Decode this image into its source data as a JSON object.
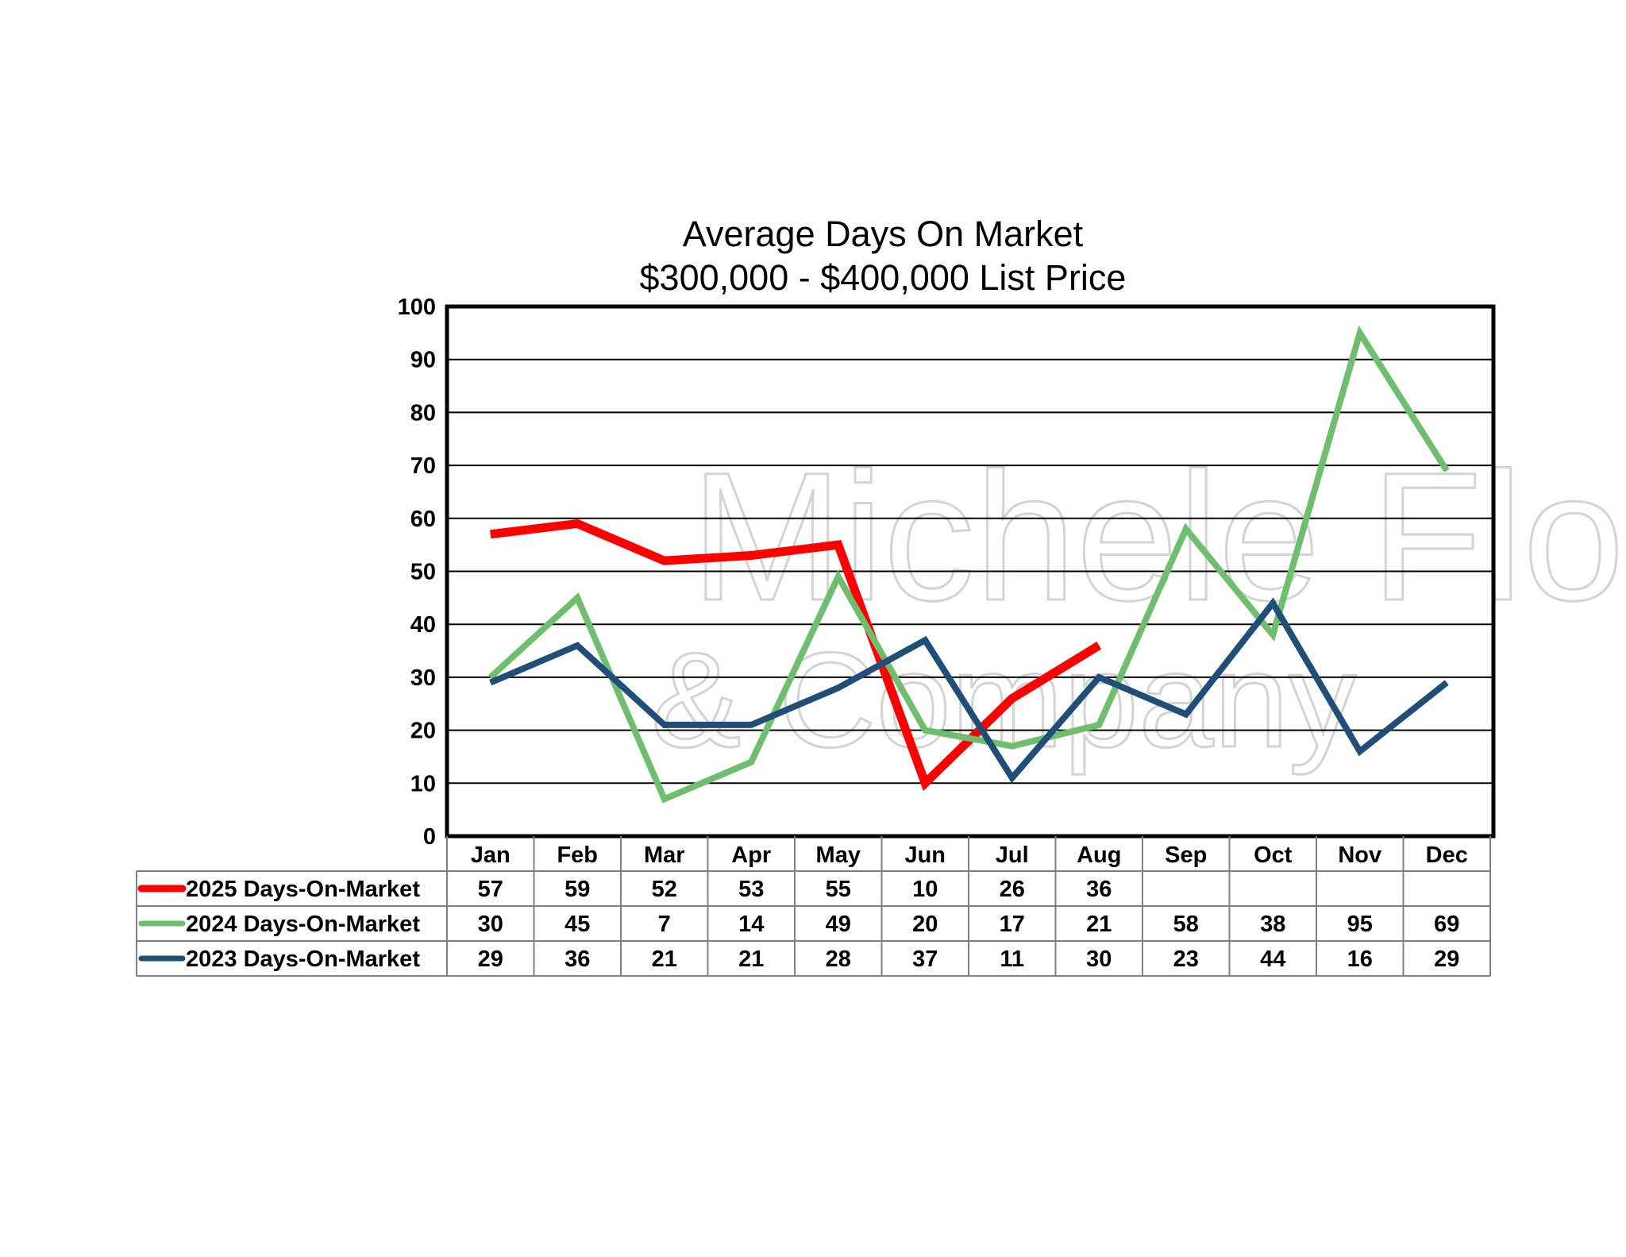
{
  "chart_data": {
    "type": "line",
    "title": "Average Days On Market",
    "subtitle": "$300,000 - $400,000 List Price",
    "categories": [
      "Jan",
      "Feb",
      "Mar",
      "Apr",
      "May",
      "Jun",
      "Jul",
      "Aug",
      "Sep",
      "Oct",
      "Nov",
      "Dec"
    ],
    "ylim": [
      0,
      100
    ],
    "yticks": [
      "0",
      "10",
      "20",
      "30",
      "40",
      "50",
      "60",
      "70",
      "80",
      "90",
      "100"
    ],
    "grid": true,
    "legend_placement": "data-table-bottom",
    "series": [
      {
        "name": "2025 Days-On-Market",
        "color": "#ff0000",
        "values": [
          57,
          59,
          52,
          53,
          55,
          10,
          26,
          36,
          null,
          null,
          null,
          null
        ]
      },
      {
        "name": "2024 Days-On-Market",
        "color": "#6dbf6d",
        "values": [
          30,
          45,
          7,
          14,
          49,
          20,
          17,
          21,
          58,
          38,
          95,
          69
        ]
      },
      {
        "name": "2023 Days-On-Market",
        "color": "#1f4e79",
        "values": [
          29,
          36,
          21,
          21,
          28,
          37,
          11,
          30,
          23,
          44,
          16,
          29
        ]
      }
    ]
  },
  "watermark": {
    "line1": "Michele Flory",
    "line2": "& Company"
  }
}
